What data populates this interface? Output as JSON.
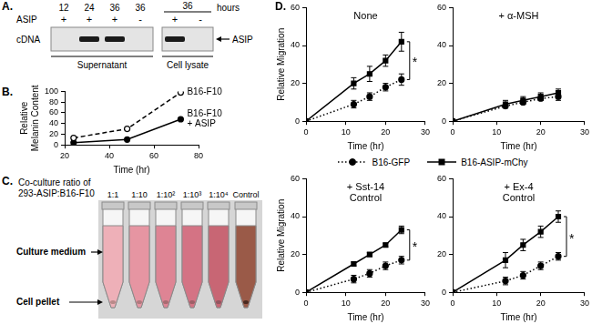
{
  "panel_labels": [
    "A.",
    "B.",
    "C.",
    "D."
  ],
  "gel": {
    "row_label": "ASIP",
    "y_label": "cDNA",
    "unit": "hours",
    "band_label": "ASIP",
    "groups": [
      {
        "label": "Supernatant",
        "lanes": [
          {
            "hours": 12,
            "asip": "+",
            "band": false
          },
          {
            "hours": 24,
            "asip": "+",
            "band": true
          },
          {
            "hours": 36,
            "asip": "+",
            "band": true
          },
          {
            "hours": 36,
            "asip": "-",
            "band": false
          }
        ]
      },
      {
        "label": "Cell lysate",
        "hours": 36,
        "lanes": [
          {
            "asip": "+",
            "band": true
          },
          {
            "asip": "-",
            "band": false
          }
        ]
      }
    ]
  },
  "coculture": {
    "title": [
      "Co-culture ratio of",
      "293-ASIP:B16-F10"
    ],
    "columns": [
      "1:1",
      "1:10",
      "1:10²",
      "1:10³",
      "1:10⁴",
      "Control"
    ],
    "labels": [
      "Culture medium",
      "Cell pellet"
    ]
  },
  "chart_data": [
    {
      "type": "line",
      "x_label": "Time (hr)",
      "y_label": "Relative Melanin Content",
      "x": [
        24,
        48,
        72
      ],
      "series": [
        {
          "name": "B16-F10",
          "color": "#000000",
          "line_style": "dashed",
          "marker": "open_circle",
          "values": [
            13,
            30,
            98
          ]
        },
        {
          "name": "B16-F10 + ASIP",
          "color": "#000000",
          "line_style": "solid",
          "marker": "circle",
          "values": [
            4,
            10,
            48
          ]
        }
      ],
      "xlim": [
        20,
        80
      ],
      "xticks": [
        20,
        40,
        60,
        80
      ],
      "ylim": [
        0,
        100
      ],
      "yticks": [
        0,
        20,
        40,
        60,
        80,
        100
      ],
      "grid": false
    },
    {
      "type": "line",
      "title": "None",
      "x_label": "Time (hr)",
      "y_label": "Relative Migration",
      "x": [
        0,
        12,
        16,
        20,
        24
      ],
      "series": [
        {
          "name": "B16-GFP",
          "color": "#000000",
          "line_style": "dotted",
          "marker": "circle",
          "values": [
            0,
            9,
            13,
            18,
            22
          ],
          "errors": [
            0,
            2,
            2,
            2,
            3
          ]
        },
        {
          "name": "B16-ASIP-mChy",
          "color": "#000000",
          "line_style": "solid",
          "marker": "square",
          "values": [
            0,
            20,
            25,
            32,
            42
          ],
          "errors": [
            0,
            3,
            4,
            3,
            5
          ]
        }
      ],
      "xlim": [
        0,
        30
      ],
      "xticks": [
        0,
        10,
        20,
        30
      ],
      "ylim": [
        0,
        60
      ],
      "yticks": [
        0,
        20,
        40,
        60
      ],
      "grid": false,
      "annotations": [
        "*"
      ]
    },
    {
      "type": "line",
      "title": "+ α-MSH",
      "x_label": "Time (hr)",
      "x": [
        0,
        12,
        16,
        20,
        24
      ],
      "series": [
        {
          "name": "B16-GFP",
          "color": "#000000",
          "line_style": "dotted",
          "marker": "circle",
          "values": [
            0,
            8,
            10,
            12,
            13
          ],
          "errors": [
            0,
            1,
            1,
            1,
            2
          ]
        },
        {
          "name": "B16-ASIP-mChy",
          "color": "#000000",
          "line_style": "solid",
          "marker": "square",
          "values": [
            0,
            9,
            11,
            13,
            15
          ],
          "errors": [
            0,
            2,
            2,
            2,
            2
          ]
        }
      ],
      "xlim": [
        0,
        30
      ],
      "xticks": [
        0,
        10,
        20,
        30
      ],
      "ylim": [
        0,
        60
      ],
      "yticks": [
        0,
        20,
        40,
        60
      ],
      "grid": false
    },
    {
      "type": "line",
      "title": [
        "+ Sst-14",
        "Control"
      ],
      "x_label": "Time (hr)",
      "y_label": "Relative Migration",
      "x": [
        0,
        12,
        16,
        20,
        24
      ],
      "series": [
        {
          "name": "B16-GFP",
          "color": "#000000",
          "line_style": "dotted",
          "marker": "circle",
          "values": [
            0,
            7,
            10,
            14,
            17
          ],
          "errors": [
            0,
            2,
            2,
            2,
            2
          ]
        },
        {
          "name": "B16-ASIP-mChy",
          "color": "#000000",
          "line_style": "solid",
          "marker": "square",
          "values": [
            0,
            15,
            20,
            25,
            33
          ],
          "errors": [
            0,
            1,
            1,
            1,
            2
          ]
        }
      ],
      "xlim": [
        0,
        30
      ],
      "xticks": [
        0,
        10,
        20,
        30
      ],
      "ylim": [
        0,
        60
      ],
      "yticks": [
        0,
        20,
        40,
        60
      ],
      "grid": false,
      "annotations": [
        "*"
      ]
    },
    {
      "type": "line",
      "title": [
        "+ Ex-4",
        "Control"
      ],
      "x_label": "Time (hr)",
      "x": [
        0,
        12,
        16,
        20,
        24
      ],
      "series": [
        {
          "name": "B16-GFP",
          "color": "#000000",
          "line_style": "dotted",
          "marker": "circle",
          "values": [
            0,
            6,
            9,
            14,
            19
          ],
          "errors": [
            0,
            2,
            2,
            2,
            2
          ]
        },
        {
          "name": "B16-ASIP-mChy",
          "color": "#000000",
          "line_style": "solid",
          "marker": "square",
          "values": [
            0,
            17,
            25,
            32,
            40
          ],
          "errors": [
            0,
            4,
            3,
            3,
            3
          ]
        }
      ],
      "xlim": [
        0,
        30
      ],
      "xticks": [
        0,
        10,
        20,
        30
      ],
      "ylim": [
        0,
        60
      ],
      "yticks": [
        0,
        20,
        40,
        60
      ],
      "grid": false,
      "annotations": [
        "*"
      ]
    }
  ]
}
